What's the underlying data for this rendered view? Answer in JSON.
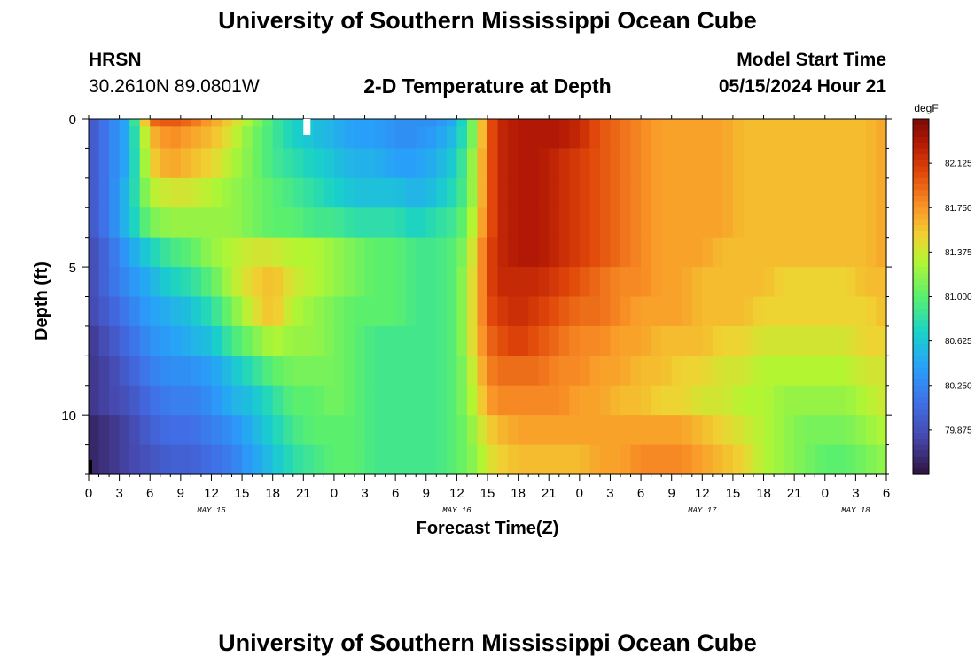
{
  "header": {
    "title": "University of Southern Mississippi Ocean Cube",
    "station": "HRSN",
    "coords": "30.2610N  89.0801W",
    "subtitle": "2-D Temperature at Depth",
    "model_label": "Model Start Time",
    "model_time": "05/15/2024 Hour 21"
  },
  "footer": {
    "title": "University of Southern Mississippi Ocean Cube"
  },
  "chart_data": {
    "type": "heatmap",
    "xlabel": "Forecast Time(Z)",
    "ylabel": "Depth (ft)",
    "x_hours_range": [
      0,
      78
    ],
    "x_tick_labels": [
      "0",
      "3",
      "6",
      "9",
      "12",
      "15",
      "18",
      "21",
      "0",
      "3",
      "6",
      "9",
      "12",
      "15",
      "18",
      "21",
      "0",
      "3",
      "6",
      "9",
      "12",
      "15",
      "18",
      "21",
      "0",
      "3",
      "6"
    ],
    "date_labels": [
      {
        "label": "MAY 15",
        "hour": 12
      },
      {
        "label": "MAY 16",
        "hour": 36
      },
      {
        "label": "MAY 17",
        "hour": 60
      },
      {
        "label": "MAY 18",
        "hour": 75
      }
    ],
    "y_range": [
      0,
      12
    ],
    "y_tick_labels": [
      "0",
      "5",
      "10"
    ],
    "y_tick_values": [
      0,
      5,
      10
    ],
    "colorbar": {
      "unit": "degF",
      "range": [
        79.5,
        82.5
      ],
      "tick_labels": [
        "82.125",
        "81.750",
        "81.375",
        "81.000",
        "80.625",
        "80.250",
        "79.875"
      ],
      "tick_values": [
        82.125,
        81.75,
        81.375,
        81.0,
        80.625,
        80.25,
        79.875
      ]
    },
    "depth_levels": [
      0,
      0.5,
      1.5,
      2.5,
      3.5,
      4.5,
      5.5,
      6.5,
      7.5,
      8.5,
      9.5,
      10.5,
      11.5
    ],
    "key_hours": [
      0,
      2,
      4,
      6,
      8,
      10,
      12,
      14,
      16,
      18,
      20,
      22,
      24,
      26,
      28,
      30,
      32,
      34,
      36,
      37,
      38,
      39,
      40,
      42,
      44,
      46,
      48,
      50,
      52,
      54,
      56,
      58,
      60,
      62,
      64,
      66,
      68,
      70,
      72,
      74,
      76,
      78
    ],
    "values": [
      [
        79.9,
        80.2,
        80.5,
        81.9,
        82.0,
        81.9,
        81.7,
        81.5,
        81.2,
        80.9,
        80.7,
        80.6,
        80.5,
        80.4,
        80.4,
        80.3,
        80.3,
        80.3,
        80.5,
        80.9,
        81.3,
        81.9,
        82.2,
        82.3,
        82.3,
        82.3,
        82.2,
        82.0,
        81.9,
        81.8,
        81.7,
        81.7,
        81.7,
        81.7,
        81.6,
        81.6,
        81.6,
        81.6,
        81.6,
        81.6,
        81.6,
        81.7
      ],
      [
        79.9,
        80.2,
        80.5,
        81.6,
        81.8,
        81.7,
        81.6,
        81.4,
        81.1,
        80.9,
        80.7,
        80.6,
        80.5,
        80.4,
        80.4,
        80.3,
        80.3,
        80.4,
        80.6,
        80.9,
        81.3,
        81.9,
        82.2,
        82.3,
        82.3,
        82.3,
        82.2,
        82.0,
        81.9,
        81.8,
        81.7,
        81.7,
        81.7,
        81.7,
        81.6,
        81.6,
        81.6,
        81.6,
        81.6,
        81.6,
        81.6,
        81.7
      ],
      [
        79.9,
        80.2,
        80.5,
        81.5,
        81.7,
        81.6,
        81.5,
        81.3,
        81.1,
        80.9,
        80.8,
        80.7,
        80.6,
        80.5,
        80.5,
        80.4,
        80.4,
        80.5,
        80.7,
        81.0,
        81.4,
        81.9,
        82.2,
        82.3,
        82.3,
        82.2,
        82.1,
        82.0,
        81.9,
        81.8,
        81.7,
        81.7,
        81.7,
        81.7,
        81.6,
        81.6,
        81.6,
        81.6,
        81.6,
        81.6,
        81.6,
        81.7
      ],
      [
        79.9,
        80.2,
        80.6,
        81.3,
        81.4,
        81.4,
        81.3,
        81.2,
        81.1,
        81.0,
        80.9,
        80.8,
        80.7,
        80.6,
        80.6,
        80.6,
        80.5,
        80.6,
        80.8,
        81.0,
        81.4,
        81.9,
        82.2,
        82.3,
        82.3,
        82.2,
        82.1,
        82.0,
        81.9,
        81.8,
        81.7,
        81.7,
        81.7,
        81.7,
        81.6,
        81.6,
        81.6,
        81.6,
        81.6,
        81.6,
        81.6,
        81.7
      ],
      [
        79.9,
        80.2,
        80.6,
        81.1,
        81.2,
        81.2,
        81.2,
        81.2,
        81.1,
        81.0,
        81.0,
        80.9,
        80.9,
        80.8,
        80.8,
        80.8,
        80.7,
        80.8,
        80.9,
        81.1,
        81.5,
        81.9,
        82.2,
        82.3,
        82.3,
        82.2,
        82.1,
        82.0,
        81.9,
        81.8,
        81.7,
        81.7,
        81.7,
        81.7,
        81.6,
        81.6,
        81.6,
        81.6,
        81.6,
        81.6,
        81.6,
        81.7
      ],
      [
        79.8,
        80.1,
        80.4,
        80.7,
        80.9,
        81.0,
        81.2,
        81.3,
        81.4,
        81.4,
        81.3,
        81.3,
        81.2,
        81.1,
        81.0,
        81.0,
        80.9,
        80.9,
        81.0,
        81.2,
        81.6,
        82.0,
        82.2,
        82.3,
        82.3,
        82.2,
        82.1,
        82.0,
        81.9,
        81.8,
        81.7,
        81.7,
        81.7,
        81.6,
        81.6,
        81.6,
        81.6,
        81.6,
        81.6,
        81.6,
        81.6,
        81.7
      ],
      [
        79.8,
        80.1,
        80.3,
        80.5,
        80.7,
        80.8,
        81.0,
        81.3,
        81.5,
        81.6,
        81.4,
        81.3,
        81.2,
        81.1,
        81.0,
        81.0,
        80.9,
        80.9,
        81.0,
        81.3,
        81.6,
        82.0,
        82.2,
        82.2,
        82.2,
        82.1,
        82.0,
        81.9,
        81.8,
        81.8,
        81.7,
        81.7,
        81.6,
        81.6,
        81.6,
        81.6,
        81.5,
        81.5,
        81.5,
        81.5,
        81.6,
        81.6
      ],
      [
        79.8,
        80.0,
        80.2,
        80.4,
        80.5,
        80.6,
        80.8,
        81.1,
        81.4,
        81.6,
        81.3,
        81.2,
        81.1,
        81.0,
        81.0,
        81.0,
        80.9,
        80.9,
        81.0,
        81.3,
        81.6,
        82.0,
        82.1,
        82.2,
        82.1,
        82.0,
        81.9,
        81.9,
        81.8,
        81.7,
        81.7,
        81.7,
        81.6,
        81.6,
        81.6,
        81.5,
        81.5,
        81.5,
        81.5,
        81.5,
        81.5,
        81.6
      ],
      [
        79.7,
        79.9,
        80.1,
        80.3,
        80.4,
        80.5,
        80.6,
        80.9,
        81.1,
        81.3,
        81.2,
        81.2,
        81.1,
        81.0,
        80.9,
        80.9,
        80.9,
        80.9,
        81.0,
        81.3,
        81.6,
        81.9,
        82.0,
        82.1,
        82.0,
        81.9,
        81.8,
        81.8,
        81.7,
        81.7,
        81.6,
        81.6,
        81.6,
        81.5,
        81.5,
        81.4,
        81.4,
        81.4,
        81.4,
        81.4,
        81.5,
        81.5
      ],
      [
        79.7,
        79.8,
        80.0,
        80.2,
        80.3,
        80.3,
        80.4,
        80.6,
        80.8,
        81.0,
        81.1,
        81.1,
        81.1,
        81.0,
        80.9,
        80.9,
        80.9,
        80.9,
        81.0,
        81.2,
        81.5,
        81.8,
        81.9,
        81.9,
        81.9,
        81.8,
        81.8,
        81.7,
        81.7,
        81.6,
        81.6,
        81.5,
        81.5,
        81.4,
        81.4,
        81.3,
        81.3,
        81.3,
        81.3,
        81.3,
        81.4,
        81.4
      ],
      [
        79.7,
        79.8,
        79.9,
        80.1,
        80.2,
        80.2,
        80.3,
        80.5,
        80.6,
        80.8,
        81.0,
        81.0,
        81.1,
        81.0,
        80.9,
        80.9,
        80.9,
        80.9,
        81.0,
        81.2,
        81.4,
        81.7,
        81.8,
        81.8,
        81.8,
        81.8,
        81.7,
        81.7,
        81.6,
        81.6,
        81.5,
        81.5,
        81.4,
        81.4,
        81.3,
        81.3,
        81.2,
        81.2,
        81.2,
        81.2,
        81.3,
        81.4
      ],
      [
        79.6,
        79.7,
        79.8,
        80.0,
        80.1,
        80.1,
        80.2,
        80.3,
        80.5,
        80.7,
        80.9,
        81.0,
        81.0,
        81.0,
        80.9,
        80.9,
        80.9,
        80.9,
        81.0,
        81.1,
        81.3,
        81.5,
        81.6,
        81.7,
        81.7,
        81.7,
        81.7,
        81.7,
        81.7,
        81.7,
        81.7,
        81.7,
        81.6,
        81.5,
        81.4,
        81.3,
        81.2,
        81.1,
        81.1,
        81.1,
        81.2,
        81.3
      ],
      [
        79.6,
        79.7,
        79.8,
        79.9,
        80.0,
        80.0,
        80.1,
        80.2,
        80.4,
        80.6,
        80.8,
        80.9,
        81.0,
        81.0,
        80.9,
        80.9,
        80.9,
        80.9,
        81.0,
        81.1,
        81.2,
        81.4,
        81.5,
        81.6,
        81.6,
        81.6,
        81.6,
        81.7,
        81.7,
        81.8,
        81.8,
        81.8,
        81.7,
        81.6,
        81.5,
        81.3,
        81.2,
        81.1,
        81.0,
        81.0,
        81.1,
        81.2
      ]
    ]
  }
}
